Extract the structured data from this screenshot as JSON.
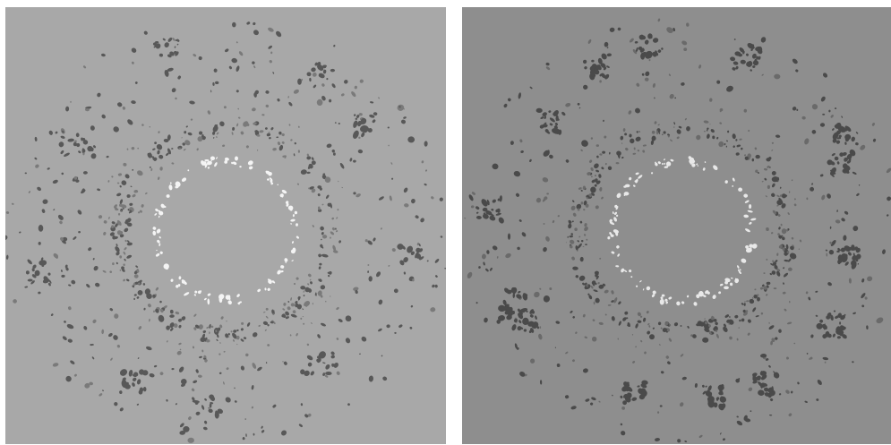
{
  "images": [
    {
      "id": "left",
      "background": "#a8a8a8",
      "dark_particle_color": "#585858",
      "mid_particle_color": "#7a7a7a",
      "bright_particle_color": "#f4f4f4",
      "texture": "sparse-ring"
    },
    {
      "id": "right",
      "background": "#8e8e8e",
      "dark_particle_color": "#4a4a4a",
      "mid_particle_color": "#6a6a6a",
      "bright_particle_color": "#e8e8e8",
      "texture": "clustered-ring"
    }
  ]
}
